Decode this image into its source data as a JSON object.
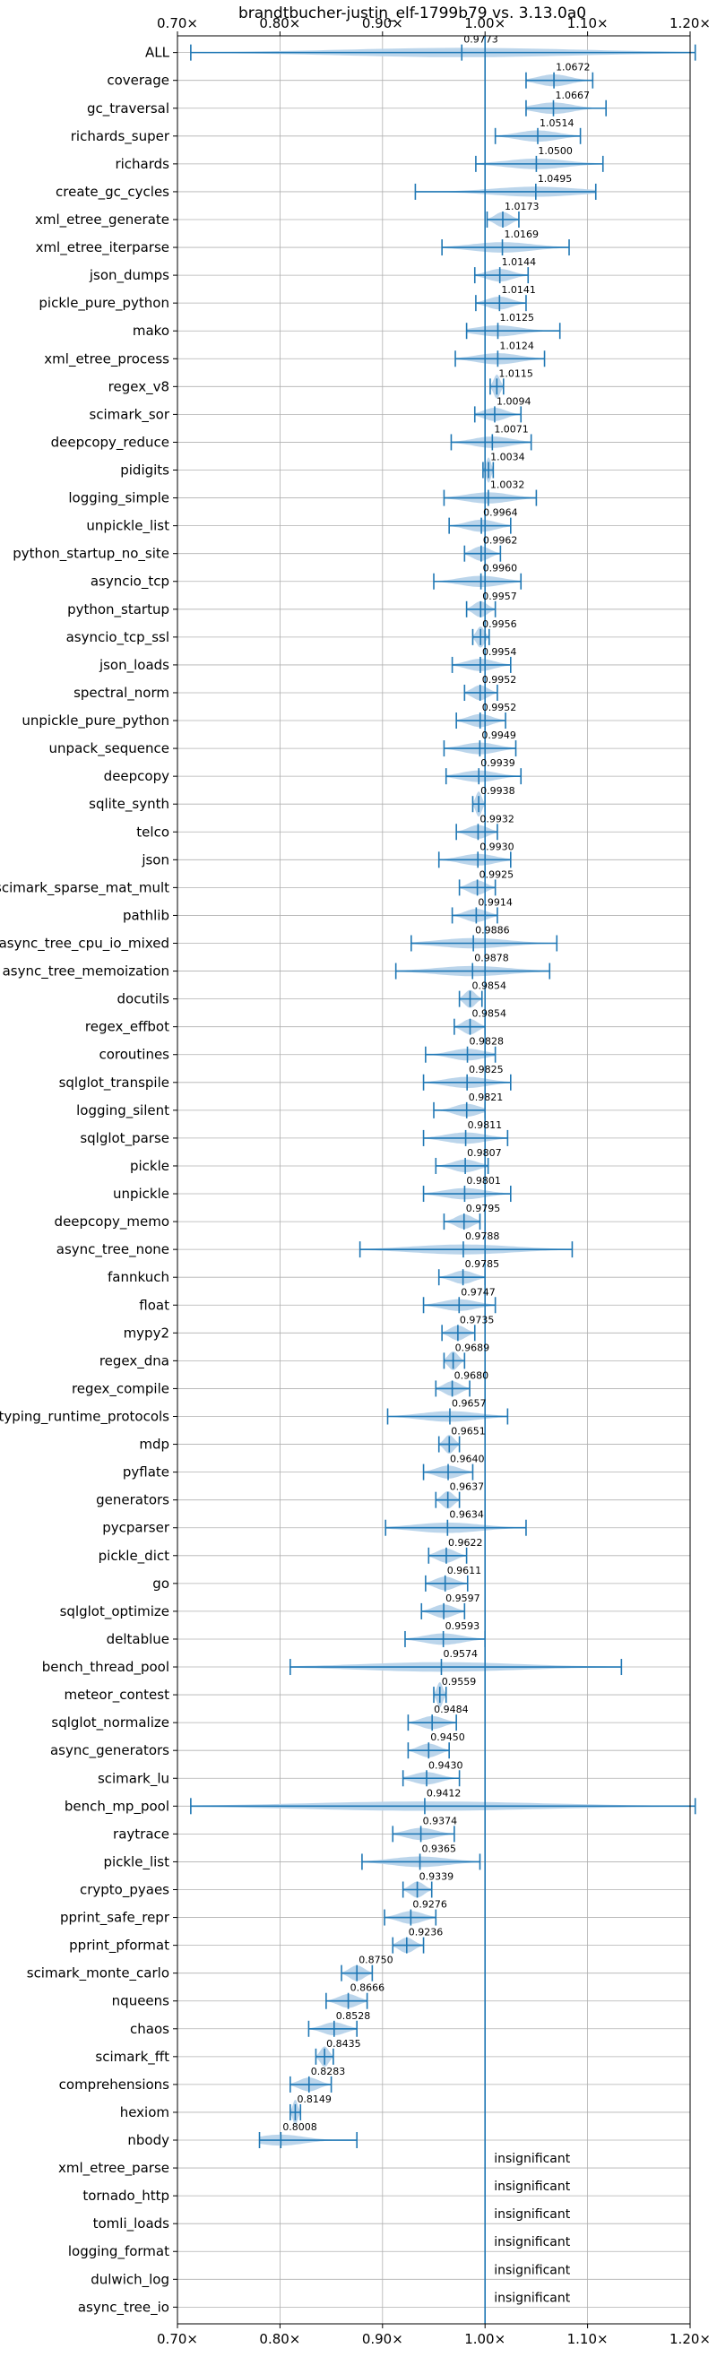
{
  "chart_data": {
    "type": "violin",
    "title": "brandtbucher-justin_elf-1799b79 vs. 3.13.0a0",
    "xlim": [
      0.7,
      1.2
    ],
    "xticks": [
      0.7,
      0.8,
      0.9,
      1.0,
      1.1,
      1.2
    ],
    "xtick_labels": [
      "0.70×",
      "0.80×",
      "0.90×",
      "1.00×",
      "1.10×",
      "1.20×"
    ],
    "reference_line": 1.0,
    "grid": true,
    "colors": {
      "violin": "#b7d3ea",
      "line": "#1f77b4",
      "grid": "#b0b0b0"
    },
    "rows": [
      {
        "name": "ALL",
        "value": 0.9773,
        "label": "0.9773",
        "min": 0.713,
        "max": 1.205
      },
      {
        "name": "coverage",
        "value": 1.0672,
        "label": "1.0672",
        "min": 1.04,
        "max": 1.105
      },
      {
        "name": "gc_traversal",
        "value": 1.0667,
        "label": "1.0667",
        "min": 1.04,
        "max": 1.118
      },
      {
        "name": "richards_super",
        "value": 1.0514,
        "label": "1.0514",
        "min": 1.01,
        "max": 1.093
      },
      {
        "name": "richards",
        "value": 1.05,
        "label": "1.0500",
        "min": 0.991,
        "max": 1.115
      },
      {
        "name": "create_gc_cycles",
        "value": 1.0495,
        "label": "1.0495",
        "min": 0.932,
        "max": 1.108
      },
      {
        "name": "xml_etree_generate",
        "value": 1.0173,
        "label": "1.0173",
        "min": 1.002,
        "max": 1.033
      },
      {
        "name": "xml_etree_iterparse",
        "value": 1.0169,
        "label": "1.0169",
        "min": 0.958,
        "max": 1.082
      },
      {
        "name": "json_dumps",
        "value": 1.0144,
        "label": "1.0144",
        "min": 0.99,
        "max": 1.042
      },
      {
        "name": "pickle_pure_python",
        "value": 1.0141,
        "label": "1.0141",
        "min": 0.991,
        "max": 1.04
      },
      {
        "name": "mako",
        "value": 1.0125,
        "label": "1.0125",
        "min": 0.982,
        "max": 1.073
      },
      {
        "name": "xml_etree_process",
        "value": 1.0124,
        "label": "1.0124",
        "min": 0.971,
        "max": 1.058
      },
      {
        "name": "regex_v8",
        "value": 1.0115,
        "label": "1.0115",
        "min": 1.005,
        "max": 1.018
      },
      {
        "name": "scimark_sor",
        "value": 1.0094,
        "label": "1.0094",
        "min": 0.99,
        "max": 1.035
      },
      {
        "name": "deepcopy_reduce",
        "value": 1.0071,
        "label": "1.0071",
        "min": 0.967,
        "max": 1.045
      },
      {
        "name": "pidigits",
        "value": 1.0034,
        "label": "1.0034",
        "min": 0.998,
        "max": 1.008
      },
      {
        "name": "logging_simple",
        "value": 1.0032,
        "label": "1.0032",
        "min": 0.96,
        "max": 1.05
      },
      {
        "name": "unpickle_list",
        "value": 0.9964,
        "label": "0.9964",
        "min": 0.965,
        "max": 1.025
      },
      {
        "name": "python_startup_no_site",
        "value": 0.9962,
        "label": "0.9962",
        "min": 0.98,
        "max": 1.015
      },
      {
        "name": "asyncio_tcp",
        "value": 0.996,
        "label": "0.9960",
        "min": 0.95,
        "max": 1.035
      },
      {
        "name": "python_startup",
        "value": 0.9957,
        "label": "0.9957",
        "min": 0.982,
        "max": 1.01
      },
      {
        "name": "asyncio_tcp_ssl",
        "value": 0.9956,
        "label": "0.9956",
        "min": 0.988,
        "max": 1.004
      },
      {
        "name": "json_loads",
        "value": 0.9954,
        "label": "0.9954",
        "min": 0.968,
        "max": 1.025
      },
      {
        "name": "spectral_norm",
        "value": 0.9952,
        "label": "0.9952",
        "min": 0.98,
        "max": 1.012
      },
      {
        "name": "unpickle_pure_python",
        "value": 0.9952,
        "label": "0.9952",
        "min": 0.972,
        "max": 1.02
      },
      {
        "name": "unpack_sequence",
        "value": 0.9949,
        "label": "0.9949",
        "min": 0.96,
        "max": 1.03
      },
      {
        "name": "deepcopy",
        "value": 0.9939,
        "label": "0.9939",
        "min": 0.962,
        "max": 1.035
      },
      {
        "name": "sqlite_synth",
        "value": 0.9938,
        "label": "0.9938",
        "min": 0.988,
        "max": 1.0
      },
      {
        "name": "telco",
        "value": 0.9932,
        "label": "0.9932",
        "min": 0.972,
        "max": 1.012
      },
      {
        "name": "json",
        "value": 0.993,
        "label": "0.9930",
        "min": 0.955,
        "max": 1.025
      },
      {
        "name": "scimark_sparse_mat_mult",
        "value": 0.9925,
        "label": "0.9925",
        "min": 0.975,
        "max": 1.01
      },
      {
        "name": "pathlib",
        "value": 0.9914,
        "label": "0.9914",
        "min": 0.968,
        "max": 1.012
      },
      {
        "name": "async_tree_cpu_io_mixed",
        "value": 0.9886,
        "label": "0.9886",
        "min": 0.928,
        "max": 1.07
      },
      {
        "name": "async_tree_memoization",
        "value": 0.9878,
        "label": "0.9878",
        "min": 0.913,
        "max": 1.063
      },
      {
        "name": "docutils",
        "value": 0.9854,
        "label": "0.9854",
        "min": 0.975,
        "max": 0.997
      },
      {
        "name": "regex_effbot",
        "value": 0.9854,
        "label": "0.9854",
        "min": 0.97,
        "max": 1.0
      },
      {
        "name": "coroutines",
        "value": 0.9828,
        "label": "0.9828",
        "min": 0.942,
        "max": 1.01
      },
      {
        "name": "sqlglot_transpile",
        "value": 0.9825,
        "label": "0.9825",
        "min": 0.94,
        "max": 1.025
      },
      {
        "name": "logging_silent",
        "value": 0.9821,
        "label": "0.9821",
        "min": 0.95,
        "max": 1.0
      },
      {
        "name": "sqlglot_parse",
        "value": 0.9811,
        "label": "0.9811",
        "min": 0.94,
        "max": 1.022
      },
      {
        "name": "pickle",
        "value": 0.9807,
        "label": "0.9807",
        "min": 0.952,
        "max": 1.003
      },
      {
        "name": "unpickle",
        "value": 0.9801,
        "label": "0.9801",
        "min": 0.94,
        "max": 1.025
      },
      {
        "name": "deepcopy_memo",
        "value": 0.9795,
        "label": "0.9795",
        "min": 0.96,
        "max": 0.995
      },
      {
        "name": "async_tree_none",
        "value": 0.9788,
        "label": "0.9788",
        "min": 0.878,
        "max": 1.085
      },
      {
        "name": "fannkuch",
        "value": 0.9785,
        "label": "0.9785",
        "min": 0.955,
        "max": 1.0
      },
      {
        "name": "float",
        "value": 0.9747,
        "label": "0.9747",
        "min": 0.94,
        "max": 1.01
      },
      {
        "name": "mypy2",
        "value": 0.9735,
        "label": "0.9735",
        "min": 0.958,
        "max": 0.99
      },
      {
        "name": "regex_dna",
        "value": 0.9689,
        "label": "0.9689",
        "min": 0.96,
        "max": 0.98
      },
      {
        "name": "regex_compile",
        "value": 0.968,
        "label": "0.9680",
        "min": 0.952,
        "max": 0.985
      },
      {
        "name": "typing_runtime_protocols",
        "value": 0.9657,
        "label": "0.9657",
        "min": 0.905,
        "max": 1.022
      },
      {
        "name": "mdp",
        "value": 0.9651,
        "label": "0.9651",
        "min": 0.955,
        "max": 0.975
      },
      {
        "name": "pyflate",
        "value": 0.964,
        "label": "0.9640",
        "min": 0.94,
        "max": 0.988
      },
      {
        "name": "generators",
        "value": 0.9637,
        "label": "0.9637",
        "min": 0.952,
        "max": 0.975
      },
      {
        "name": "pycparser",
        "value": 0.9634,
        "label": "0.9634",
        "min": 0.903,
        "max": 1.04
      },
      {
        "name": "pickle_dict",
        "value": 0.9622,
        "label": "0.9622",
        "min": 0.945,
        "max": 0.982
      },
      {
        "name": "go",
        "value": 0.9611,
        "label": "0.9611",
        "min": 0.942,
        "max": 0.983
      },
      {
        "name": "sqlglot_optimize",
        "value": 0.9597,
        "label": "0.9597",
        "min": 0.938,
        "max": 0.98
      },
      {
        "name": "deltablue",
        "value": 0.9593,
        "label": "0.9593",
        "min": 0.922,
        "max": 1.0
      },
      {
        "name": "bench_thread_pool",
        "value": 0.9574,
        "label": "0.9574",
        "min": 0.81,
        "max": 1.133
      },
      {
        "name": "meteor_contest",
        "value": 0.9559,
        "label": "0.9559",
        "min": 0.95,
        "max": 0.962
      },
      {
        "name": "sqlglot_normalize",
        "value": 0.9484,
        "label": "0.9484",
        "min": 0.925,
        "max": 0.972
      },
      {
        "name": "async_generators",
        "value": 0.945,
        "label": "0.9450",
        "min": 0.925,
        "max": 0.965
      },
      {
        "name": "scimark_lu",
        "value": 0.943,
        "label": "0.9430",
        "min": 0.92,
        "max": 0.975
      },
      {
        "name": "bench_mp_pool",
        "value": 0.9412,
        "label": "0.9412",
        "min": 0.713,
        "max": 1.205
      },
      {
        "name": "raytrace",
        "value": 0.9374,
        "label": "0.9374",
        "min": 0.91,
        "max": 0.97
      },
      {
        "name": "pickle_list",
        "value": 0.9365,
        "label": "0.9365",
        "min": 0.88,
        "max": 0.995
      },
      {
        "name": "crypto_pyaes",
        "value": 0.9339,
        "label": "0.9339",
        "min": 0.92,
        "max": 0.948
      },
      {
        "name": "pprint_safe_repr",
        "value": 0.9276,
        "label": "0.9276",
        "min": 0.902,
        "max": 0.952
      },
      {
        "name": "pprint_pformat",
        "value": 0.9236,
        "label": "0.9236",
        "min": 0.91,
        "max": 0.94
      },
      {
        "name": "scimark_monte_carlo",
        "value": 0.875,
        "label": "0.8750",
        "min": 0.86,
        "max": 0.89
      },
      {
        "name": "nqueens",
        "value": 0.8666,
        "label": "0.8666",
        "min": 0.845,
        "max": 0.885
      },
      {
        "name": "chaos",
        "value": 0.8528,
        "label": "0.8528",
        "min": 0.828,
        "max": 0.875
      },
      {
        "name": "scimark_fft",
        "value": 0.8435,
        "label": "0.8435",
        "min": 0.835,
        "max": 0.852
      },
      {
        "name": "comprehensions",
        "value": 0.8283,
        "label": "0.8283",
        "min": 0.81,
        "max": 0.85
      },
      {
        "name": "hexiom",
        "value": 0.8149,
        "label": "0.8149",
        "min": 0.81,
        "max": 0.82
      },
      {
        "name": "nbody",
        "value": 0.8008,
        "label": "0.8008",
        "min": 0.78,
        "max": 0.875
      },
      {
        "name": "xml_etree_parse",
        "value": null,
        "label": "insignificant"
      },
      {
        "name": "tornado_http",
        "value": null,
        "label": "insignificant"
      },
      {
        "name": "tomli_loads",
        "value": null,
        "label": "insignificant"
      },
      {
        "name": "logging_format",
        "value": null,
        "label": "insignificant"
      },
      {
        "name": "dulwich_log",
        "value": null,
        "label": "insignificant"
      },
      {
        "name": "async_tree_io",
        "value": null,
        "label": "insignificant"
      }
    ]
  }
}
